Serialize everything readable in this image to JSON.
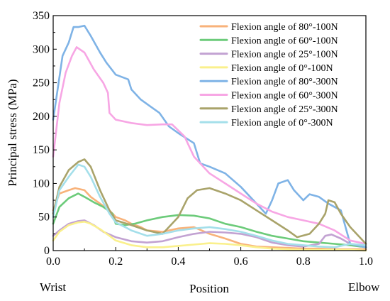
{
  "chart_data": {
    "type": "line",
    "xlabel": "Position",
    "ylabel": "Principal stress (MPa)",
    "xlim": [
      0,
      1
    ],
    "ylim": [
      0,
      350
    ],
    "xticks": [
      "0.0",
      "0.2",
      "0.4",
      "0.6",
      "0.8",
      "1.0"
    ],
    "yticks": [
      "0",
      "50",
      "100",
      "150",
      "200",
      "250",
      "300",
      "350"
    ],
    "annotations": {
      "left": "Wrist",
      "right": "Elbow"
    },
    "legend_position": "top-right",
    "grid": false,
    "series": [
      {
        "name": "Flexion angle of 80°-100N",
        "color": "#F8B27A",
        "x": [
          0,
          0.02,
          0.05,
          0.07,
          0.1,
          0.12,
          0.15,
          0.18,
          0.2,
          0.23,
          0.25,
          0.28,
          0.3,
          0.35,
          0.4,
          0.45,
          0.5,
          0.55,
          0.6,
          0.65,
          0.7,
          0.75,
          0.8,
          0.85,
          0.9,
          0.95,
          1.0
        ],
        "y": [
          60,
          85,
          90,
          93,
          90,
          80,
          70,
          60,
          50,
          45,
          40,
          35,
          30,
          28,
          33,
          35,
          25,
          18,
          10,
          6,
          5,
          4,
          3,
          3,
          2,
          2,
          2
        ]
      },
      {
        "name": "Flexion angle of 60°-100N",
        "color": "#6CCB7A",
        "x": [
          0,
          0.02,
          0.05,
          0.08,
          0.1,
          0.13,
          0.16,
          0.19,
          0.2,
          0.23,
          0.26,
          0.3,
          0.35,
          0.4,
          0.45,
          0.5,
          0.55,
          0.6,
          0.65,
          0.7,
          0.75,
          0.8,
          0.85,
          0.9,
          0.95,
          1.0
        ],
        "y": [
          40,
          65,
          78,
          85,
          80,
          72,
          65,
          55,
          40,
          38,
          40,
          45,
          50,
          53,
          52,
          48,
          40,
          35,
          28,
          22,
          18,
          14,
          12,
          10,
          8,
          5
        ]
      },
      {
        "name": "Flexion angle of 25°-100N",
        "color": "#C2A2D2",
        "x": [
          0,
          0.02,
          0.05,
          0.08,
          0.1,
          0.13,
          0.16,
          0.2,
          0.25,
          0.3,
          0.35,
          0.4,
          0.45,
          0.5,
          0.55,
          0.6,
          0.65,
          0.7,
          0.75,
          0.8,
          0.85,
          0.87,
          0.89,
          0.92,
          0.95,
          1.0
        ],
        "y": [
          22,
          30,
          40,
          44,
          45,
          38,
          28,
          20,
          14,
          12,
          14,
          20,
          25,
          28,
          27,
          25,
          20,
          12,
          8,
          6,
          10,
          22,
          24,
          18,
          10,
          5
        ]
      },
      {
        "name": "Flexion angle of 0°-100N",
        "color": "#FAF08C",
        "x": [
          0,
          0.02,
          0.05,
          0.08,
          0.1,
          0.12,
          0.15,
          0.18,
          0.2,
          0.25,
          0.3,
          0.35,
          0.4,
          0.45,
          0.5,
          0.55,
          0.6,
          0.65,
          0.7,
          0.75,
          0.8,
          0.85,
          0.9,
          0.95,
          1.0
        ],
        "y": [
          15,
          28,
          38,
          42,
          43,
          40,
          32,
          22,
          15,
          8,
          5,
          5,
          7,
          9,
          11,
          10,
          8,
          5,
          3,
          2,
          1,
          1,
          1,
          1,
          0
        ]
      },
      {
        "name": "Flexion angle of 80°-300N",
        "color": "#7FB3E6",
        "x": [
          0,
          0.03,
          0.05,
          0.065,
          0.08,
          0.1,
          0.12,
          0.15,
          0.17,
          0.2,
          0.24,
          0.25,
          0.28,
          0.31,
          0.34,
          0.37,
          0.4,
          0.45,
          0.47,
          0.5,
          0.55,
          0.6,
          0.65,
          0.68,
          0.7,
          0.72,
          0.75,
          0.77,
          0.8,
          0.82,
          0.85,
          0.88,
          0.92,
          0.95,
          1.0
        ],
        "y": [
          195,
          290,
          310,
          333,
          333,
          335,
          320,
          295,
          280,
          262,
          255,
          240,
          225,
          215,
          205,
          185,
          175,
          160,
          130,
          125,
          115,
          95,
          70,
          55,
          75,
          100,
          105,
          90,
          75,
          84,
          80,
          70,
          60,
          10,
          5
        ]
      },
      {
        "name": "Flexion angle of 60°-300N",
        "color": "#F7A6E4",
        "x": [
          0,
          0.02,
          0.04,
          0.06,
          0.075,
          0.1,
          0.13,
          0.16,
          0.175,
          0.18,
          0.2,
          0.25,
          0.3,
          0.35,
          0.38,
          0.42,
          0.45,
          0.5,
          0.55,
          0.6,
          0.65,
          0.7,
          0.75,
          0.8,
          0.85,
          0.9,
          0.95,
          1.0
        ],
        "y": [
          140,
          220,
          265,
          290,
          303,
          295,
          270,
          250,
          235,
          205,
          195,
          190,
          187,
          188,
          188,
          170,
          140,
          115,
          100,
          85,
          70,
          58,
          50,
          45,
          40,
          30,
          15,
          10
        ]
      },
      {
        "name": "Flexion angle of 25°-300N",
        "color": "#A9A36A",
        "x": [
          0,
          0.02,
          0.05,
          0.08,
          0.1,
          0.12,
          0.15,
          0.18,
          0.2,
          0.25,
          0.3,
          0.35,
          0.4,
          0.43,
          0.46,
          0.5,
          0.55,
          0.6,
          0.65,
          0.7,
          0.75,
          0.78,
          0.82,
          0.85,
          0.87,
          0.88,
          0.9,
          0.92,
          0.95,
          1.0
        ],
        "y": [
          55,
          95,
          120,
          132,
          136,
          125,
          90,
          60,
          45,
          38,
          30,
          25,
          50,
          78,
          90,
          93,
          85,
          75,
          60,
          45,
          30,
          20,
          25,
          40,
          55,
          75,
          72,
          55,
          35,
          10
        ]
      },
      {
        "name": "Flexion angle of 0°-300N",
        "color": "#A4DFEA",
        "x": [
          0,
          0.02,
          0.05,
          0.08,
          0.1,
          0.12,
          0.15,
          0.18,
          0.2,
          0.23,
          0.25,
          0.3,
          0.35,
          0.4,
          0.45,
          0.5,
          0.55,
          0.6,
          0.65,
          0.7,
          0.75,
          0.8,
          0.85,
          0.9,
          0.95,
          1.0
        ],
        "y": [
          50,
          90,
          110,
          128,
          125,
          110,
          80,
          55,
          42,
          35,
          30,
          22,
          25,
          30,
          33,
          35,
          32,
          28,
          22,
          15,
          10,
          8,
          6,
          5,
          10,
          8
        ]
      }
    ]
  }
}
